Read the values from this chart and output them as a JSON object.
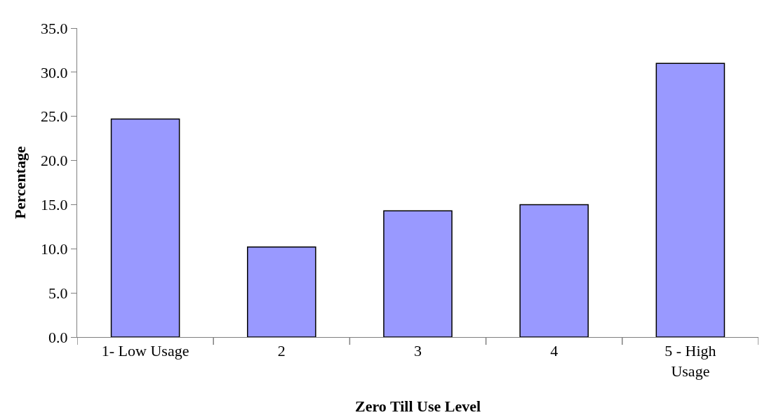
{
  "chart_data": {
    "type": "bar",
    "xlabel": "Zero Till Use Level",
    "ylabel": "Percentage",
    "categories": [
      "1- Low Usage",
      "2",
      "3",
      "4",
      "5 - High Usage"
    ],
    "values": [
      24.7,
      10.2,
      14.3,
      15.0,
      31.0
    ],
    "color": "#9999ff",
    "ylim": [
      0,
      35
    ],
    "yticks": [
      {
        "value": 0,
        "label": "0.0"
      },
      {
        "value": 5,
        "label": "5.0"
      },
      {
        "value": 10,
        "label": "10.0"
      },
      {
        "value": 15,
        "label": "15.0"
      },
      {
        "value": 20,
        "label": "20.0"
      },
      {
        "value": 25,
        "label": "25.0"
      },
      {
        "value": 30,
        "label": "30.0"
      },
      {
        "value": 35,
        "label": "35.0"
      }
    ]
  }
}
